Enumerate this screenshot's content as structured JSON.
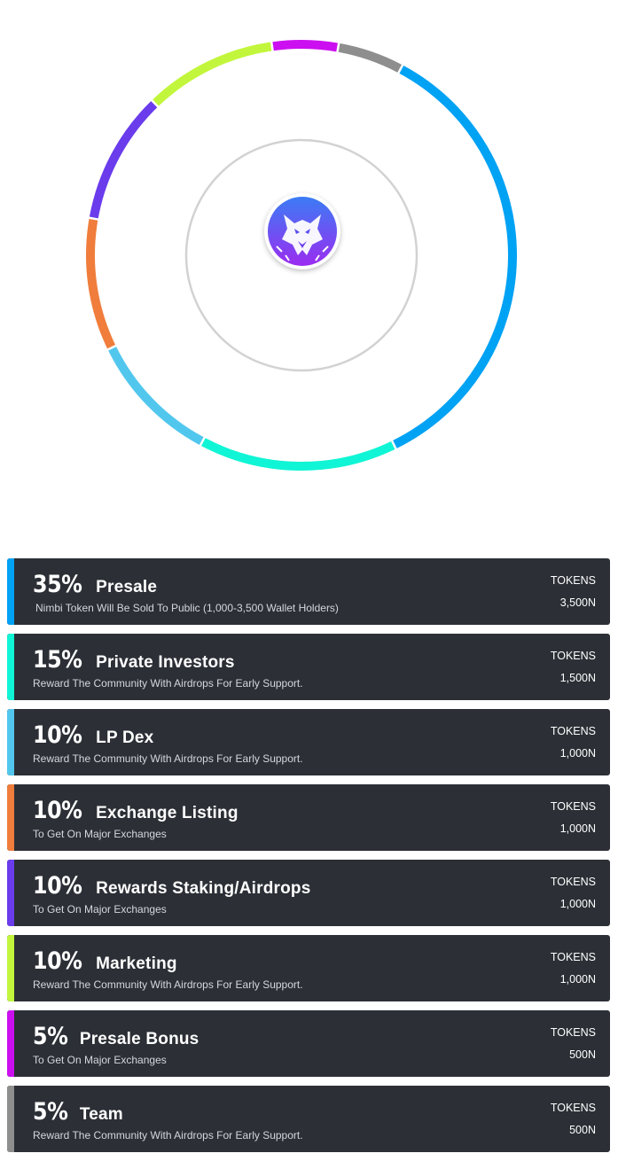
{
  "chart_data": {
    "type": "pie",
    "title": "",
    "tokens_label": "TOKENS",
    "slices": [
      {
        "percent_label": "35%",
        "value": 35,
        "name": "Presale",
        "description": "Nimbi Token Will Be Sold To Public (1,000-3,500 Wallet Holders)",
        "amount": "3,500N",
        "color": "#00a2f4"
      },
      {
        "percent_label": "15%",
        "value": 15,
        "name": "Private Investors",
        "description": "Reward The Community With Airdrops For Early Support.",
        "amount": "1,500N",
        "color": "#10f5d5"
      },
      {
        "percent_label": "10%",
        "value": 10,
        "name": "LP Dex",
        "description": "Reward The Community With Airdrops For Early Support.",
        "amount": "1,000N",
        "color": "#52c7ee"
      },
      {
        "percent_label": "10%",
        "value": 10,
        "name": "Exchange Listing",
        "description": "To Get On Major Exchanges",
        "amount": "1,000N",
        "color": "#f07d3c"
      },
      {
        "percent_label": "10%",
        "value": 10,
        "name": "Rewards Staking/Airdrops",
        "description": "To Get On Major Exchanges",
        "amount": "1,000N",
        "color": "#6a3cec"
      },
      {
        "percent_label": "10%",
        "value": 10,
        "name": "Marketing",
        "description": "Reward The Community With Airdrops For Early Support.",
        "amount": "1,000N",
        "color": "#c2f63c"
      },
      {
        "percent_label": "5%",
        "value": 5,
        "name": "Presale Bonus",
        "description": "To Get On Major Exchanges",
        "amount": "500N",
        "color": "#cc0ff0"
      },
      {
        "percent_label": "5%",
        "value": 5,
        "name": "Team",
        "description": "Reward The Community With Airdrops For Early Support.",
        "amount": "500N",
        "color": "#8e8e8e"
      }
    ]
  },
  "logo": {
    "icon": "wolf-logo-icon",
    "gradient_top": "#3b7cf5",
    "gradient_bottom": "#9b2cf0"
  },
  "colors": {
    "row_bg": "#2c3036",
    "inner_ring": "#d2d2d2"
  }
}
